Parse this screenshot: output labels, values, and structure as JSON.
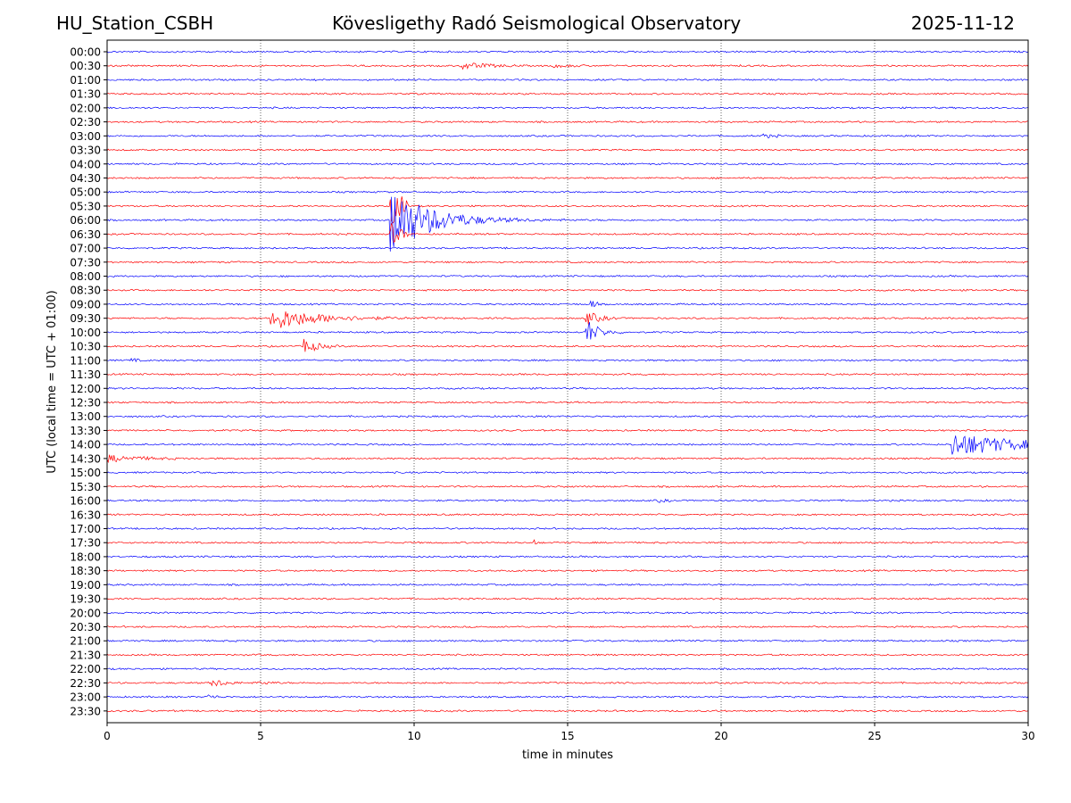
{
  "header": {
    "station": "HU_Station_CSBH",
    "observatory": "Kövesligethy Radó Seismological Observatory",
    "date": "2025-11-12"
  },
  "chart_data": {
    "type": "seismogram",
    "title": "Kövesligethy Radó Seismological Observatory",
    "xlabel": "time in minutes",
    "ylabel": "UTC (local time = UTC + 01:00)",
    "xlim": [
      0,
      30
    ],
    "xticks": [
      0,
      5,
      10,
      15,
      20,
      25,
      30
    ],
    "grid": "vertical dotted at x ticks",
    "trace_colors": [
      "#0000ff",
      "#ff0000"
    ],
    "row_labels": [
      "00:00",
      "00:30",
      "01:00",
      "01:30",
      "02:00",
      "02:30",
      "03:00",
      "03:30",
      "04:00",
      "04:30",
      "05:00",
      "05:30",
      "06:00",
      "06:30",
      "07:00",
      "07:30",
      "08:00",
      "08:30",
      "09:00",
      "09:30",
      "10:00",
      "10:30",
      "11:00",
      "11:30",
      "12:00",
      "12:30",
      "13:00",
      "13:30",
      "14:00",
      "14:30",
      "15:00",
      "15:30",
      "16:00",
      "16:30",
      "17:00",
      "17:30",
      "18:00",
      "18:30",
      "19:00",
      "19:30",
      "20:00",
      "20:30",
      "21:00",
      "21:30",
      "22:00",
      "22:30",
      "23:00",
      "23:30"
    ],
    "events": [
      {
        "row": 1,
        "start": 11.5,
        "amp": 4,
        "decay": 0.8,
        "length": 2.0
      },
      {
        "row": 1,
        "start": 14.5,
        "amp": 1.5,
        "decay": 0.8,
        "length": 1.2
      },
      {
        "row": 6,
        "start": 21.3,
        "amp": 2,
        "decay": 0.5,
        "length": 0.6
      },
      {
        "row": 11,
        "start": 9.2,
        "amp": 25,
        "decay": 0.45,
        "length": 0.6
      },
      {
        "row": 12,
        "start": 9.2,
        "amp": 40,
        "decay": 1.2,
        "length": 8.0
      },
      {
        "row": 13,
        "start": 9.2,
        "amp": 14,
        "decay": 0.35,
        "length": 0.6
      },
      {
        "row": 19,
        "start": 5.3,
        "amp": 14,
        "decay": 1.3,
        "length": 7.0
      },
      {
        "row": 19,
        "start": 15.6,
        "amp": 8,
        "decay": 0.4,
        "length": 1.0
      },
      {
        "row": 20,
        "start": 15.6,
        "amp": 16,
        "decay": 0.35,
        "length": 1.2
      },
      {
        "row": 18,
        "start": 15.7,
        "amp": 6,
        "decay": 0.2,
        "length": 0.3
      },
      {
        "row": 21,
        "start": 6.4,
        "amp": 9,
        "decay": 0.4,
        "length": 1.2
      },
      {
        "row": 22,
        "start": 0.7,
        "amp": 3,
        "decay": 0.2,
        "length": 0.4
      },
      {
        "row": 28,
        "start": 27.5,
        "amp": 14,
        "decay": 2.0,
        "length": 2.5
      },
      {
        "row": 29,
        "start": 0.0,
        "amp": 4,
        "decay": 1.0,
        "length": 2.5
      },
      {
        "row": 32,
        "start": 17.9,
        "amp": 2,
        "decay": 0.3,
        "length": 0.5
      },
      {
        "row": 35,
        "start": 13.9,
        "amp": 4,
        "decay": 0.05,
        "length": 0.1
      },
      {
        "row": 45,
        "start": 3.4,
        "amp": 5,
        "decay": 0.4,
        "length": 1.0
      },
      {
        "row": 45,
        "start": 4.9,
        "amp": 2,
        "decay": 0.4,
        "length": 0.8
      },
      {
        "row": 46,
        "start": 3.2,
        "amp": 3,
        "decay": 0.3,
        "length": 0.5
      }
    ]
  }
}
